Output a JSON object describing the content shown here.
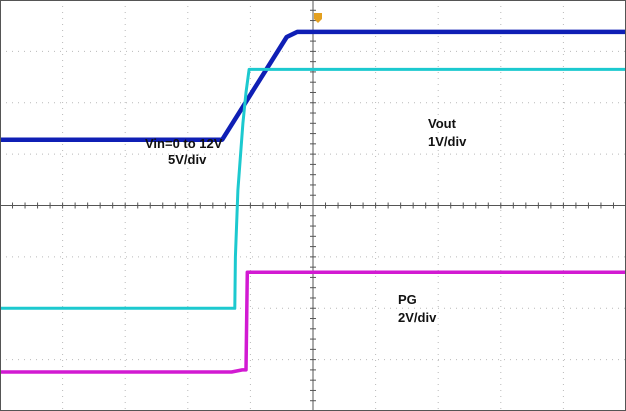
{
  "colors": {
    "background": "#ffffff",
    "border": "#555555",
    "grid": "#b9b9b9",
    "center_axis": "#555555",
    "trigger": "#e3a020",
    "vin": "#0f1fb5",
    "vout": "#1cc9cf",
    "pg": "#d21ad2"
  },
  "labels": {
    "vin_name": "Vin=0 to 12V",
    "vin_scale": "5V/div",
    "vout_name": "Vout",
    "vout_scale": "1V/div",
    "pg_name": "PG",
    "pg_scale": "2V/div"
  },
  "chart_data": {
    "type": "line",
    "title": "",
    "xlabel": "",
    "ylabel": "",
    "grid": true,
    "divisions": {
      "x": 10,
      "y": 8
    },
    "xlim": [
      0,
      10
    ],
    "ylim": [
      -4,
      4
    ],
    "trigger_x": 4.05,
    "series": [
      {
        "name": "Vin=0 to 12V",
        "scale": "5V/div",
        "color_key": "vin",
        "stroke_width": 4.5,
        "x": [
          0,
          3.55,
          4.58,
          4.75,
          10
        ],
        "y": [
          1.28,
          1.28,
          3.28,
          3.38,
          3.38
        ]
      },
      {
        "name": "Vout",
        "scale": "1V/div",
        "color_key": "vout",
        "stroke_width": 3,
        "x": [
          0,
          3.75,
          3.76,
          3.8,
          3.88,
          3.93,
          3.98,
          10
        ],
        "y": [
          -2.0,
          -2.0,
          -1.0,
          0.3,
          1.6,
          2.2,
          2.65,
          2.65
        ]
      },
      {
        "name": "PG",
        "scale": "2V/div",
        "color_key": "pg",
        "stroke_width": 3.5,
        "x": [
          0,
          3.7,
          3.87,
          3.93,
          3.95,
          10
        ],
        "y": [
          -3.24,
          -3.24,
          -3.2,
          -3.2,
          -1.3,
          -1.3
        ]
      }
    ]
  }
}
